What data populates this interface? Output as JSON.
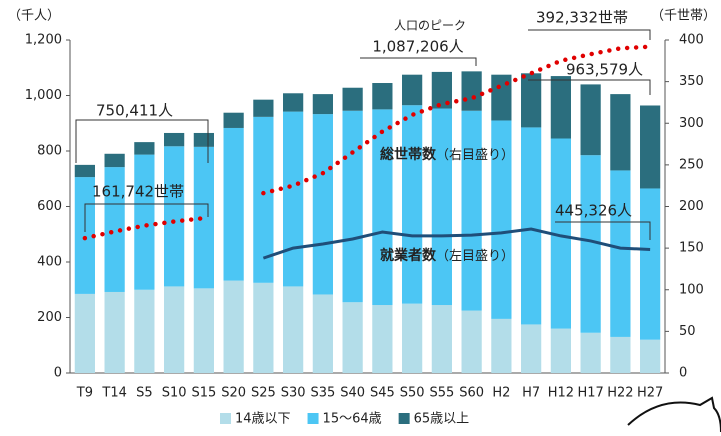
{
  "chart_data": {
    "type": "bar",
    "stacked": true,
    "y_label": "（千人）",
    "y2_label": "（千世帯）",
    "categories": [
      "T9",
      "T14",
      "S5",
      "S10",
      "S15",
      "S20",
      "S25",
      "S30",
      "S35",
      "S40",
      "S45",
      "S50",
      "S55",
      "S60",
      "H2",
      "H7",
      "H12",
      "H17",
      "H22",
      "H27"
    ],
    "ylim": [
      0,
      1200
    ],
    "yticks": [
      0,
      200,
      400,
      600,
      800,
      {
        "value": 1000,
        "label": "1,000"
      },
      {
        "value": 1200,
        "label": "1,200"
      }
    ],
    "y2lim": [
      0,
      400
    ],
    "y2ticks": [
      0,
      50,
      100,
      150,
      200,
      250,
      300,
      350,
      400
    ],
    "series": [
      {
        "name": "14歳以下",
        "type": "bar",
        "color": "#b3dde9",
        "values": [
          285,
          292,
          300,
          312,
          305,
          333,
          325,
          312,
          283,
          255,
          245,
          250,
          245,
          225,
          195,
          175,
          160,
          145,
          130,
          120
        ]
      },
      {
        "name": "15～64歳",
        "type": "bar",
        "color": "#4cc6f4",
        "values": [
          421,
          450,
          487,
          505,
          510,
          550,
          598,
          630,
          650,
          690,
          705,
          715,
          708,
          720,
          715,
          710,
          685,
          640,
          600,
          545
        ]
      },
      {
        "name": "65歳以上",
        "type": "bar",
        "color": "#2b6e7e",
        "values": [
          44,
          48,
          45,
          48,
          50,
          55,
          62,
          66,
          72,
          83,
          95,
          110,
          132,
          142,
          165,
          195,
          225,
          255,
          275,
          299
        ]
      },
      {
        "name": "総世帯数",
        "type": "line",
        "axis": "y2",
        "line_style": "dotted",
        "color": "#e00000",
        "values": [
          162,
          170,
          177,
          182,
          186,
          null,
          216,
          225,
          240,
          265,
          290,
          310,
          323,
          330,
          345,
          360,
          375,
          383,
          390,
          392
        ]
      },
      {
        "name": "就業者数",
        "type": "line",
        "line_style": "solid",
        "color": "#1f4e79",
        "values": [
          null,
          null,
          null,
          null,
          null,
          null,
          414,
          450,
          465,
          483,
          508,
          494,
          494,
          497,
          505,
          519,
          494,
          476,
          450,
          445
        ]
      }
    ],
    "annotations": {
      "t9_population": "750,411人",
      "t9_households": "161,742世帯",
      "peak_title": "人口のピーク",
      "peak_population": "1,087,206人",
      "h27_households": "392,332世帯",
      "h27_population": "963,579人",
      "h27_workers": "445,326人",
      "households_label": "総世帯数",
      "households_note": "（右目盛り）",
      "workers_label": "就業者数",
      "workers_note": "（左目盛り）"
    }
  }
}
